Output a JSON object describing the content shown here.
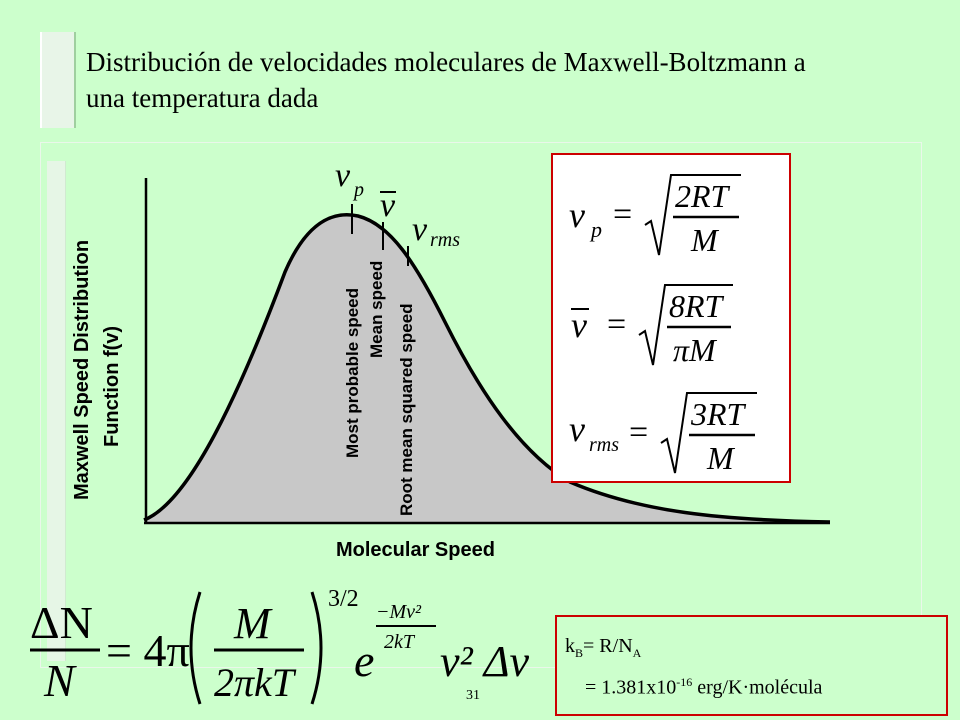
{
  "slide": {
    "title": "Distribución de velocidades moleculares de Maxwell-Boltzmann a una temperatura dada",
    "number": "31"
  },
  "plot": {
    "ylabel_line1": "Maxwell Speed Distribution",
    "ylabel_line2": "Function f(v)",
    "xlabel": "Molecular Speed",
    "markers": [
      {
        "symbol": "v",
        "subscript": "p",
        "label": "Most probable speed"
      },
      {
        "symbol": "v̄",
        "subscript": "",
        "label": "Mean speed"
      },
      {
        "symbol": "v",
        "subscript": "rms",
        "label": "Root mean squared speed"
      }
    ]
  },
  "formulas": {
    "vp": {
      "lhs": "v",
      "lhs_sub": "p",
      "num": "2RT",
      "den": "M"
    },
    "vmean": {
      "lhs": "v̄",
      "num": "8RT",
      "den": "πM"
    },
    "vrms": {
      "lhs": "v",
      "lhs_sub": "rms",
      "num": "3RT",
      "den": "M"
    }
  },
  "constants": {
    "kb_label": "k",
    "kb_sub": "B",
    "kb_eq": "= R/N",
    "kb_eq_sub": "A",
    "value_prefix": "= 1.381x10",
    "value_exp": "-16",
    "value_suffix": " erg/K·molécula"
  },
  "main_equation": {
    "lhs_num": "ΔN",
    "lhs_den": "N",
    "coef": "= 4π",
    "frac_num": "M",
    "frac_den": "2πkT",
    "power": "3/2",
    "exp_base": "e",
    "exp_num": "−Mv²",
    "exp_den": "2kT",
    "tail": "v² Δv"
  },
  "colors": {
    "background": "#ccffcc",
    "box_border": "#cc0000",
    "curve_fill": "#c8c8c8"
  }
}
